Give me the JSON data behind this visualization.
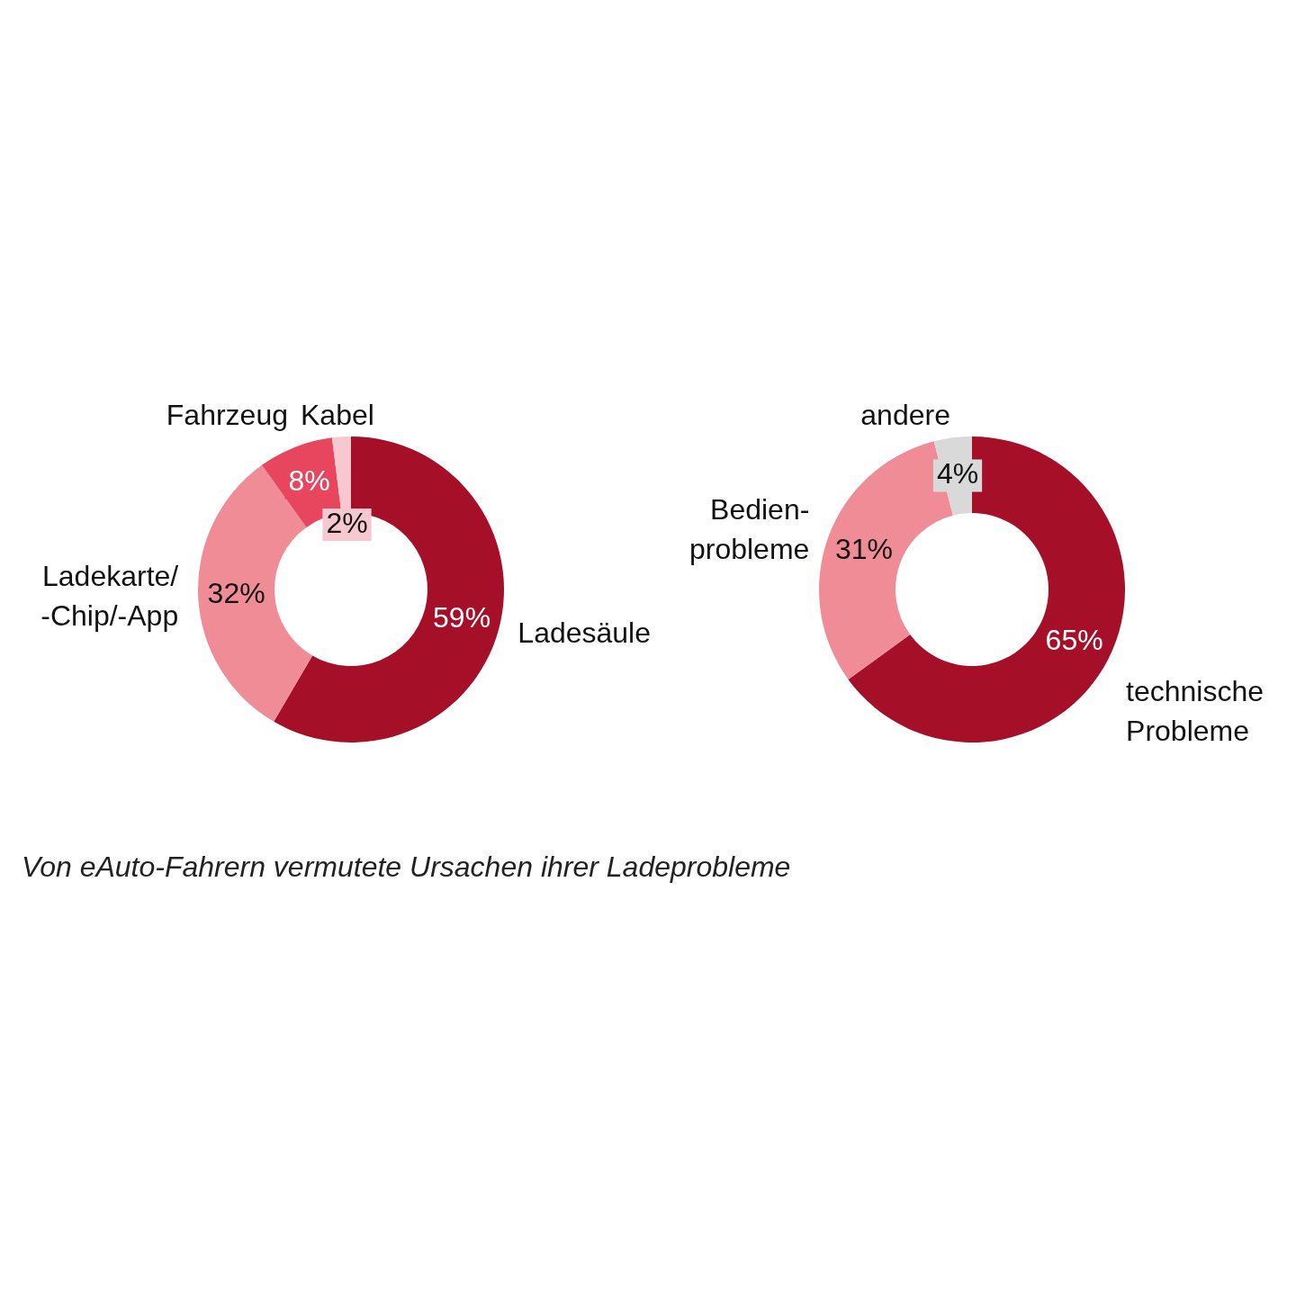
{
  "chart_data": [
    {
      "type": "donut",
      "categories": [
        "Ladesäule",
        "Ladekarte/\n-Chip/-App",
        "Fahrzeug",
        "Kabel"
      ],
      "values": [
        59,
        32,
        8,
        2
      ],
      "value_labels": [
        "59%",
        "32%",
        "8%",
        "2%"
      ],
      "colors": [
        "#a50f28",
        "#f08c96",
        "#e8465f",
        "#f8c8d0"
      ],
      "legend": false
    },
    {
      "type": "donut",
      "categories": [
        "technische\nProbleme",
        "Bedien-\nprobleme",
        "andere"
      ],
      "values": [
        65,
        31,
        4
      ],
      "value_labels": [
        "65%",
        "31%",
        "4%"
      ],
      "colors": [
        "#a50f28",
        "#f08c96",
        "#d9d9d9"
      ],
      "legend": false,
      "annotations": [
        "Von eAuto-Fahrern vermutete Ursachen ihrer Ladeprobleme"
      ]
    }
  ]
}
